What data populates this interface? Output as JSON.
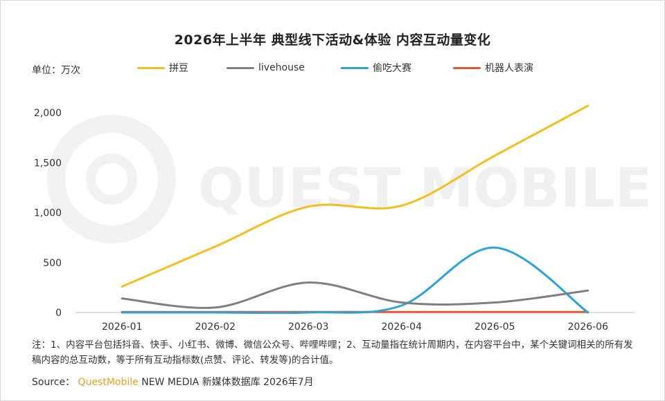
{
  "title": "2026年上半年 典型线下活动&体验 内容互动量变化",
  "unit_label": "单位：万次",
  "watermark": "QUEST MOBILE",
  "legend": [
    {
      "name": "拼豆",
      "color": "#F5BE1E"
    },
    {
      "name": "livehouse",
      "color": "#7F7F7F"
    },
    {
      "name": "偷吃大赛",
      "color": "#2AA3DA"
    },
    {
      "name": "机器人表演",
      "color": "#E8572A"
    }
  ],
  "chart_data": {
    "type": "line",
    "title": "2026年上半年 典型线下活动&体验 内容互动量变化",
    "xlabel": "",
    "ylabel": "单位：万次",
    "categories": [
      "2026-01",
      "2026-02",
      "2026-03",
      "2026-04",
      "2026-05",
      "2026-06"
    ],
    "ylim": [
      0,
      2000
    ],
    "yticks": [
      0,
      500,
      1000,
      1500,
      2000
    ],
    "ytick_labels": [
      "0",
      "500",
      "1,000",
      "1,500",
      "2,000"
    ],
    "smooth": true,
    "grid": false,
    "legend_position": "top",
    "series": [
      {
        "name": "拼豆",
        "color": "#F5BE1E",
        "values": [
          260,
          660,
          1060,
          1070,
          1570,
          2070
        ]
      },
      {
        "name": "livehouse",
        "color": "#7F7F7F",
        "values": [
          140,
          50,
          300,
          100,
          100,
          220
        ]
      },
      {
        "name": "偷吃大赛",
        "color": "#2AA3DA",
        "values": [
          0,
          0,
          0,
          70,
          650,
          0
        ]
      },
      {
        "name": "机器人表演",
        "color": "#E8572A",
        "values": [
          5,
          5,
          5,
          5,
          5,
          5
        ]
      }
    ]
  },
  "note": "注：1、内容平台包括抖音、快手、小红书、微博、微信公众号、哔哩哔哩；2、互动量指在统计周期内，在内容平台中，某个关键词相关的所有发稿内容的总互动数，等于所有互动指标数(点赞、评论、转发等)的合计值。",
  "source": {
    "label": "Source：",
    "brand": "QuestMobile",
    "rest": "NEW MEDIA 新媒体数据库 2026年7月"
  }
}
